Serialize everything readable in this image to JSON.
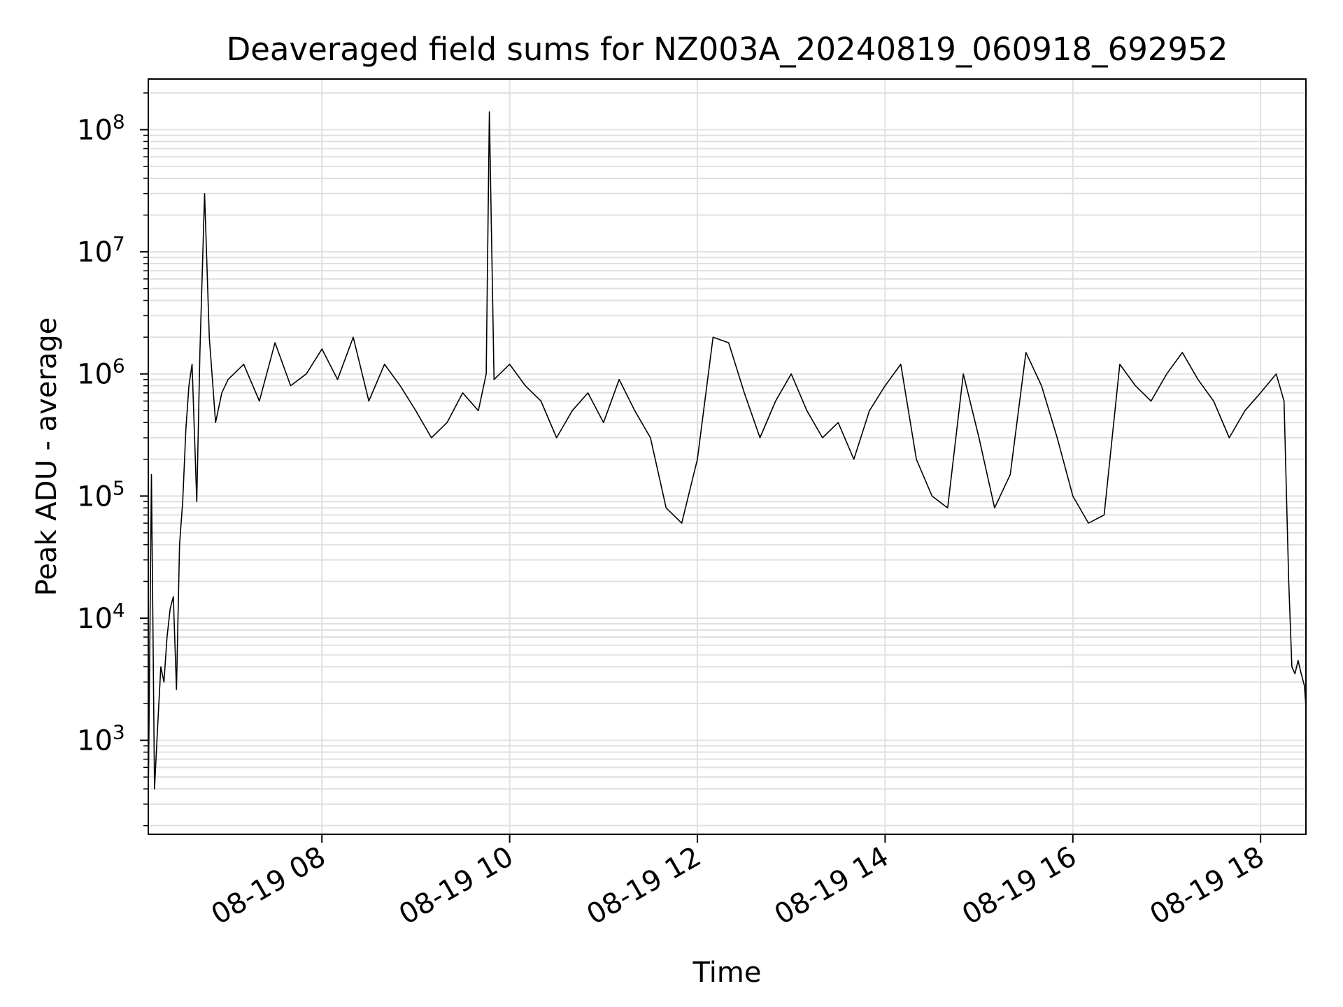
{
  "chart_data": {
    "type": "line",
    "title": "Deaveraged field sums for NZ003A_20240819_060918_692952",
    "xlabel": "Time",
    "ylabel": "Peak ADU - average",
    "yscale": "log",
    "ylim": [
      170,
      260000000
    ],
    "xlim": [
      "2024-08-19 06:09",
      "2024-08-19 18:29"
    ],
    "grid": true,
    "line_color": "#000000",
    "grid_color": "#e0e0e0",
    "x_ticks": [
      {
        "t": "2024-08-19 08:00",
        "label": "08-19 08"
      },
      {
        "t": "2024-08-19 10:00",
        "label": "08-19 10"
      },
      {
        "t": "2024-08-19 12:00",
        "label": "08-19 12"
      },
      {
        "t": "2024-08-19 14:00",
        "label": "08-19 14"
      },
      {
        "t": "2024-08-19 16:00",
        "label": "08-19 16"
      },
      {
        "t": "2024-08-19 18:00",
        "label": "08-19 18"
      }
    ],
    "y_ticks": [
      {
        "value": 1000,
        "base": "10",
        "exp": "3"
      },
      {
        "value": 10000,
        "base": "10",
        "exp": "4"
      },
      {
        "value": 100000,
        "base": "10",
        "exp": "5"
      },
      {
        "value": 1000000,
        "base": "10",
        "exp": "6"
      },
      {
        "value": 10000000,
        "base": "10",
        "exp": "7"
      },
      {
        "value": 100000000,
        "base": "10",
        "exp": "8"
      }
    ],
    "series": [
      {
        "x": [
          "2024-08-19 06:09",
          "2024-08-19 06:11",
          "2024-08-19 06:13",
          "2024-08-19 06:15",
          "2024-08-19 06:17",
          "2024-08-19 06:19",
          "2024-08-19 06:21",
          "2024-08-19 06:23",
          "2024-08-19 06:25",
          "2024-08-19 06:27",
          "2024-08-19 06:29",
          "2024-08-19 06:31",
          "2024-08-19 06:33",
          "2024-08-19 06:35",
          "2024-08-19 06:37",
          "2024-08-19 06:40",
          "2024-08-19 06:42",
          "2024-08-19 06:45",
          "2024-08-19 06:48",
          "2024-08-19 06:52",
          "2024-08-19 06:56",
          "2024-08-19 07:00",
          "2024-08-19 07:10",
          "2024-08-19 07:20",
          "2024-08-19 07:30",
          "2024-08-19 07:40",
          "2024-08-19 07:50",
          "2024-08-19 08:00",
          "2024-08-19 08:10",
          "2024-08-19 08:20",
          "2024-08-19 08:30",
          "2024-08-19 08:40",
          "2024-08-19 08:50",
          "2024-08-19 09:00",
          "2024-08-19 09:10",
          "2024-08-19 09:20",
          "2024-08-19 09:30",
          "2024-08-19 09:40",
          "2024-08-19 09:45",
          "2024-08-19 09:47",
          "2024-08-19 09:50",
          "2024-08-19 10:00",
          "2024-08-19 10:10",
          "2024-08-19 10:20",
          "2024-08-19 10:30",
          "2024-08-19 10:40",
          "2024-08-19 10:50",
          "2024-08-19 11:00",
          "2024-08-19 11:10",
          "2024-08-19 11:20",
          "2024-08-19 11:30",
          "2024-08-19 11:40",
          "2024-08-19 11:50",
          "2024-08-19 12:00",
          "2024-08-19 12:10",
          "2024-08-19 12:20",
          "2024-08-19 12:30",
          "2024-08-19 12:40",
          "2024-08-19 12:50",
          "2024-08-19 13:00",
          "2024-08-19 13:10",
          "2024-08-19 13:20",
          "2024-08-19 13:30",
          "2024-08-19 13:40",
          "2024-08-19 13:50",
          "2024-08-19 14:00",
          "2024-08-19 14:10",
          "2024-08-19 14:20",
          "2024-08-19 14:30",
          "2024-08-19 14:40",
          "2024-08-19 14:50",
          "2024-08-19 15:00",
          "2024-08-19 15:10",
          "2024-08-19 15:20",
          "2024-08-19 15:30",
          "2024-08-19 15:40",
          "2024-08-19 15:50",
          "2024-08-19 16:00",
          "2024-08-19 16:10",
          "2024-08-19 16:20",
          "2024-08-19 16:30",
          "2024-08-19 16:40",
          "2024-08-19 16:50",
          "2024-08-19 17:00",
          "2024-08-19 17:10",
          "2024-08-19 17:20",
          "2024-08-19 17:30",
          "2024-08-19 17:40",
          "2024-08-19 17:50",
          "2024-08-19 18:00",
          "2024-08-19 18:10",
          "2024-08-19 18:15",
          "2024-08-19 18:18",
          "2024-08-19 18:20",
          "2024-08-19 18:22",
          "2024-08-19 18:24",
          "2024-08-19 18:26",
          "2024-08-19 18:28",
          "2024-08-19 18:29"
        ],
        "y": [
          320,
          150000,
          400,
          1300,
          4000,
          3000,
          7000,
          12000,
          15000,
          2600,
          40000,
          90000,
          350000,
          800000,
          1200000,
          90000,
          1500000,
          30000000,
          2000000,
          400000,
          700000,
          900000,
          1200000,
          600000,
          1800000,
          800000,
          1000000,
          1600000,
          900000,
          2000000,
          600000,
          1200000,
          800000,
          500000,
          300000,
          400000,
          700000,
          500000,
          1000000,
          140000000,
          900000,
          1200000,
          800000,
          600000,
          300000,
          500000,
          700000,
          400000,
          900000,
          500000,
          300000,
          80000,
          60000,
          200000,
          2000000,
          1800000,
          700000,
          300000,
          600000,
          1000000,
          500000,
          300000,
          400000,
          200000,
          500000,
          800000,
          1200000,
          200000,
          100000,
          80000,
          1000000,
          300000,
          80000,
          150000,
          1500000,
          800000,
          300000,
          100000,
          60000,
          70000,
          1200000,
          800000,
          600000,
          1000000,
          1500000,
          900000,
          600000,
          300000,
          500000,
          700000,
          1000000,
          600000,
          20000,
          4000,
          3500,
          4500,
          3500,
          2800,
          1900
        ]
      }
    ]
  }
}
